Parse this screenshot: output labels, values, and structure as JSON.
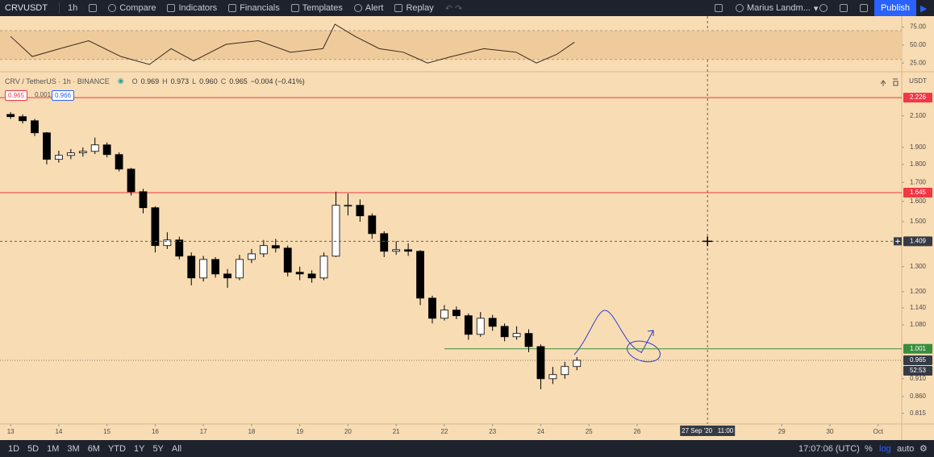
{
  "toolbar": {
    "symbol": "CRVUSDT",
    "interval": "1h",
    "items": [
      "Compare",
      "Indicators",
      "Financials",
      "Templates",
      "Alert",
      "Replay"
    ],
    "user": "Marius Landm...",
    "publish": "Publish"
  },
  "legend": {
    "title": "CRV / TetherUS · 1h · BINANCE",
    "open_label": "O",
    "open": "0.969",
    "high_label": "H",
    "high": "0.973",
    "low_label": "L",
    "low": "0.960",
    "close_label": "C",
    "close": "0.965",
    "change": "−0.004 (−0.41%)",
    "bid": "0.965",
    "spread": "0.001",
    "ask": "0.966"
  },
  "bottom_bar": {
    "ranges": [
      "1D",
      "5D",
      "1M",
      "3M",
      "6M",
      "YTD",
      "1Y",
      "5Y",
      "All"
    ],
    "time": "17:07:06 (UTC)",
    "options": [
      "%",
      "log",
      "auto"
    ]
  },
  "chart_data": [
    {
      "type": "candlestick",
      "currency": "USDT",
      "log": true,
      "up_color": "#ffffff",
      "down_color": "#000000",
      "x": [
        13,
        13.25,
        13.5,
        13.75,
        14,
        14.25,
        14.5,
        14.75,
        15,
        15.25,
        15.5,
        15.75,
        16,
        16.25,
        16.5,
        16.75,
        17,
        17.25,
        17.5,
        17.75,
        18,
        18.25,
        18.5,
        18.75,
        19,
        19.25,
        19.5,
        19.75,
        20,
        20.25,
        20.5,
        20.75,
        21,
        21.25,
        21.5,
        21.75,
        22,
        22.25,
        22.5,
        22.75,
        23,
        23.25,
        23.5,
        23.75,
        24,
        24.25,
        24.5,
        24.75
      ],
      "open": [
        2.11,
        2.095,
        2.068,
        1.99,
        1.829,
        1.852,
        1.867,
        1.876,
        1.915,
        1.857,
        1.773,
        1.65,
        1.568,
        1.39,
        1.415,
        1.344,
        1.254,
        1.33,
        1.27,
        1.254,
        1.33,
        1.354,
        1.39,
        1.379,
        1.277,
        1.27,
        1.254,
        1.344,
        1.58,
        1.58,
        1.528,
        1.444,
        1.365,
        1.372,
        1.365,
        1.176,
        1.103,
        1.132,
        1.112,
        1.048,
        1.103,
        1.075,
        1.04,
        1.051,
        1.008,
        0.91,
        0.922,
        0.946
      ],
      "high": [
        2.125,
        2.11,
        2.08,
        1.995,
        1.88,
        1.89,
        1.9,
        1.96,
        1.93,
        1.87,
        1.78,
        1.665,
        1.575,
        1.45,
        1.43,
        1.36,
        1.345,
        1.34,
        1.29,
        1.35,
        1.375,
        1.415,
        1.42,
        1.39,
        1.3,
        1.285,
        1.36,
        1.65,
        1.64,
        1.61,
        1.54,
        1.455,
        1.41,
        1.4,
        1.37,
        1.185,
        1.15,
        1.145,
        1.12,
        1.125,
        1.115,
        1.085,
        1.075,
        1.065,
        1.015,
        0.945,
        0.96,
        0.975
      ],
      "low": [
        2.08,
        2.05,
        1.97,
        1.8,
        1.81,
        1.83,
        1.845,
        1.86,
        1.84,
        1.76,
        1.63,
        1.54,
        1.36,
        1.375,
        1.33,
        1.225,
        1.24,
        1.255,
        1.215,
        1.245,
        1.315,
        1.34,
        1.36,
        1.26,
        1.245,
        1.235,
        1.245,
        1.34,
        1.53,
        1.5,
        1.42,
        1.34,
        1.35,
        1.345,
        1.15,
        1.085,
        1.095,
        1.1,
        1.03,
        1.04,
        1.06,
        1.025,
        1.03,
        0.99,
        0.88,
        0.895,
        0.91,
        0.935
      ],
      "close": [
        2.095,
        2.068,
        1.99,
        1.829,
        1.852,
        1.867,
        1.876,
        1.915,
        1.857,
        1.773,
        1.65,
        1.568,
        1.39,
        1.415,
        1.344,
        1.254,
        1.33,
        1.27,
        1.254,
        1.33,
        1.354,
        1.39,
        1.379,
        1.277,
        1.27,
        1.254,
        1.344,
        1.58,
        1.58,
        1.528,
        1.444,
        1.365,
        1.372,
        1.365,
        1.176,
        1.103,
        1.132,
        1.112,
        1.048,
        1.103,
        1.075,
        1.04,
        1.051,
        1.008,
        0.91,
        0.922,
        0.946,
        0.965
      ],
      "xlim": [
        12.78,
        31.49
      ],
      "xticks": [
        13,
        14,
        15,
        16,
        17,
        18,
        19,
        20,
        21,
        22,
        23,
        24,
        25,
        26,
        29,
        30,
        {
          "value": 31,
          "label": "Oct"
        }
      ],
      "ylim": [
        0.79,
        2.38
      ],
      "yticks": [
        {
          "value": 2.1,
          "label": "2.100"
        },
        {
          "value": 1.9,
          "label": "1.900"
        },
        {
          "value": 1.8,
          "label": "1.800"
        },
        {
          "value": 1.7,
          "label": "1.700"
        },
        {
          "value": 1.6,
          "label": "1.600"
        },
        {
          "value": 1.5,
          "label": "1.500"
        },
        {
          "value": 1.3,
          "label": "1.300"
        },
        {
          "value": 1.2,
          "label": "1.200"
        },
        {
          "value": 1.14,
          "label": "1.140"
        },
        {
          "value": 1.08,
          "label": "1.080"
        },
        {
          "value": 0.91,
          "label": "0.910"
        },
        {
          "value": 0.86,
          "label": "0.860"
        },
        {
          "value": 0.815,
          "label": "0.815"
        }
      ],
      "hlines": [
        {
          "value": 2.226,
          "color": "#f23645"
        },
        {
          "value": 1.645,
          "color": "#f23645"
        },
        {
          "value": 1.001,
          "color": "#388e3c",
          "x0": 22
        }
      ],
      "crosshair": {
        "x": 27.46,
        "value": 1.409,
        "label": "27 Sep '20   11:00"
      },
      "countdown": "52:53"
    },
    {
      "type": "line",
      "color": "#3a2a1a",
      "x": [
        13,
        13.45,
        14.02,
        14.62,
        15.29,
        15.88,
        16.33,
        16.8,
        17.47,
        18.14,
        18.81,
        19.48,
        19.73,
        20.15,
        20.65,
        21.15,
        21.65,
        22.15,
        22.82,
        23.49,
        23.91,
        24.33,
        24.7
      ],
      "values": [
        62,
        34,
        45,
        56,
        34,
        23,
        45,
        28,
        51,
        56,
        40,
        45,
        79,
        62,
        45,
        40,
        25,
        34,
        45,
        40,
        25,
        37,
        54
      ],
      "xlim": [
        12.78,
        31.49
      ],
      "ylim": [
        14,
        88
      ],
      "band": [
        30,
        70
      ],
      "yticks": [
        {
          "value": 75,
          "label": "75.00"
        },
        {
          "value": 50,
          "label": "50.00"
        },
        {
          "value": 25,
          "label": "25.00"
        }
      ]
    }
  ]
}
